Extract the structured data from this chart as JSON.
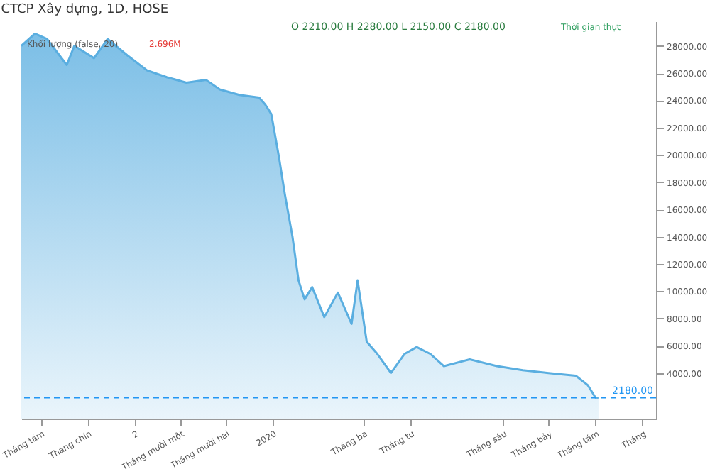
{
  "chart_data": {
    "type": "area",
    "title": "CTCP Xây dựng, 1D, HOSE",
    "annotations": [
      "O 2210.00 H 2280.00 L 2150.00 C 2180.00",
      "Khối lượng (false, 20)",
      "2.696M",
      "Thời gian thực"
    ],
    "x": [
      "2019-07-19",
      "2019-07-28",
      "2019-08-05",
      "2019-08-18",
      "2019-08-23",
      "2019-09-05",
      "2019-09-14",
      "2019-09-27",
      "2019-10-10",
      "2019-10-23",
      "2019-11-05",
      "2019-11-18",
      "2019-11-27",
      "2019-12-10",
      "2019-12-23",
      "2019-12-27",
      "2019-12-31",
      "2020-01-05",
      "2020-01-09",
      "2020-01-14",
      "2020-01-18",
      "2020-01-22",
      "2020-01-27",
      "2020-02-04",
      "2020-02-13",
      "2020-02-22",
      "2020-02-26",
      "2020-03-03",
      "2020-03-10",
      "2020-03-19",
      "2020-03-28",
      "2020-04-05",
      "2020-04-14",
      "2020-04-23",
      "2020-05-10",
      "2020-05-28",
      "2020-06-14",
      "2020-07-01",
      "2020-07-19",
      "2020-07-27",
      "2020-08-01",
      "2020-08-03"
    ],
    "series": [
      {
        "color": "#5aaee0",
        "values": [
          28000,
          28900,
          28500,
          26600,
          28000,
          27100,
          28500,
          27300,
          26200,
          25700,
          25300,
          25500,
          24800,
          24400,
          24200,
          23700,
          23000,
          19900,
          17100,
          14000,
          10800,
          9400,
          10300,
          8100,
          9900,
          7600,
          10800,
          6300,
          5400,
          4000,
          5400,
          5900,
          5400,
          4500,
          5000,
          4500,
          4200,
          4000,
          3800,
          3100,
          2200,
          2180
        ]
      }
    ],
    "xlim": [
      "2019-07-19",
      "2020-09-10"
    ],
    "xticks": [
      {
        "value": "2019-08-01",
        "label": "Tháng tám"
      },
      {
        "value": "2019-09-01",
        "label": "Tháng chín"
      },
      {
        "value": "2019-10-02",
        "label": "2"
      },
      {
        "value": "2019-11-01",
        "label": "Tháng mười một"
      },
      {
        "value": "2019-12-01",
        "label": "Tháng mười hai"
      },
      {
        "value": "2020-01-01",
        "label": "2020"
      },
      {
        "value": "2020-03-01",
        "label": "Tháng ba"
      },
      {
        "value": "2020-04-01",
        "label": "Tháng tư"
      },
      {
        "value": "2020-06-01",
        "label": "Tháng sáu"
      },
      {
        "value": "2020-07-01",
        "label": "Tháng bảy"
      },
      {
        "value": "2020-08-01",
        "label": "Tháng tám"
      },
      {
        "value": "2020-09-01",
        "label": "Tháng"
      }
    ],
    "ylim": [
      650,
      29800
    ],
    "yticks": [
      {
        "value": 4000,
        "label": "4000.00"
      },
      {
        "value": 6000,
        "label": "6000.00"
      },
      {
        "value": 8000,
        "label": "8000.00"
      },
      {
        "value": 10000,
        "label": "10000.00"
      },
      {
        "value": 12000,
        "label": "12000.00"
      },
      {
        "value": 14000,
        "label": "14000.00"
      },
      {
        "value": 16000,
        "label": "16000.00"
      },
      {
        "value": 18000,
        "label": "18000.00"
      },
      {
        "value": 20000,
        "label": "20000.00"
      },
      {
        "value": 22000,
        "label": "22000.00"
      },
      {
        "value": 24000,
        "label": "24000.00"
      },
      {
        "value": 26000,
        "label": "26000.00"
      },
      {
        "value": 28000,
        "label": "28000.00"
      }
    ],
    "ref_lines": [
      {
        "axis": "y",
        "value": 2180,
        "label": "2180.00",
        "color": "#2196f3",
        "line_style": "dashed"
      }
    ],
    "grid": false
  }
}
